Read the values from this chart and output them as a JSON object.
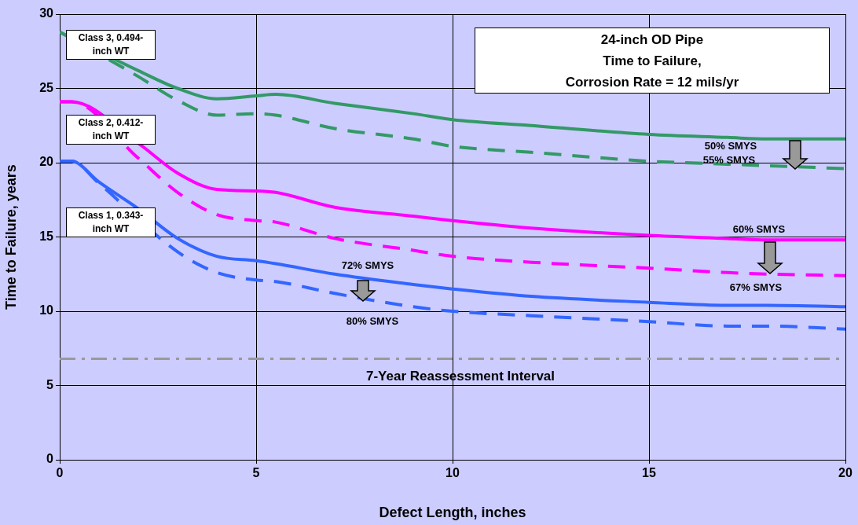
{
  "chart_data": {
    "type": "line",
    "title": "24-inch OD Pipe\nTime to Failure,\nCorrosion Rate = 12 mils/yr",
    "xlabel": "Defect Length, inches",
    "ylabel": "Time to Failure, years",
    "x": [
      0,
      0.3,
      1,
      2,
      3,
      4,
      5,
      5.5,
      7,
      9,
      10,
      12,
      15,
      17,
      18,
      20
    ],
    "series": [
      {
        "name": "50% SMYS",
        "color": "#339966",
        "line_style": "solid",
        "values": [
          28.8,
          null,
          null,
          26.2,
          25.0,
          24.3,
          24.5,
          24.6,
          24.0,
          23.3,
          22.9,
          22.5,
          21.9,
          21.7,
          21.6,
          21.6
        ]
      },
      {
        "name": "55% SMYS",
        "color": "#339966",
        "line_style": "dashed",
        "values": [
          28.8,
          null,
          null,
          25.8,
          24.2,
          23.2,
          23.3,
          23.2,
          22.3,
          21.6,
          21.1,
          20.7,
          20.1,
          19.9,
          19.8,
          19.6
        ]
      },
      {
        "name": "60% SMYS",
        "color": "#ff00ff",
        "line_style": "solid",
        "values": [
          24.1,
          24.1,
          null,
          21.3,
          19.3,
          18.2,
          18.1,
          18.0,
          17.0,
          16.4,
          16.1,
          15.6,
          15.1,
          14.9,
          14.8,
          14.8
        ]
      },
      {
        "name": "67% SMYS",
        "color": "#ff00ff",
        "line_style": "dashed",
        "values": [
          24.1,
          24.1,
          null,
          20.3,
          18.0,
          16.5,
          16.1,
          16.0,
          14.9,
          14.1,
          13.7,
          13.3,
          12.9,
          12.6,
          12.5,
          12.4
        ]
      },
      {
        "name": "72% SMYS",
        "color": "#3366ff",
        "line_style": "solid",
        "values": [
          20.1,
          20.1,
          18.7,
          16.9,
          14.9,
          13.7,
          13.4,
          13.2,
          12.5,
          11.8,
          11.5,
          11.0,
          10.6,
          10.4,
          10.4,
          10.3
        ]
      },
      {
        "name": "80% SMYS",
        "color": "#3366ff",
        "line_style": "dashed",
        "values": [
          20.1,
          20.1,
          18.6,
          null,
          14.0,
          12.6,
          12.1,
          12.0,
          11.2,
          10.3,
          10.0,
          9.7,
          9.3,
          9.0,
          9.0,
          8.8
        ]
      }
    ],
    "annotations": [
      "Class 3, 0.494-inch WT",
      "Class 2, 0.412-inch WT",
      "Class 1, 0.343-inch WT"
    ],
    "ref_lines": [
      {
        "axis": "y",
        "value": 6.8,
        "label": "7-Year Reassessment Interval",
        "color": "#999999",
        "line_style": "dashdot"
      }
    ],
    "xlim": [
      0,
      20
    ],
    "xticks": [
      0,
      5,
      10,
      15,
      20
    ],
    "ylim": [
      0,
      30
    ],
    "yticks": [
      0,
      5,
      10,
      15,
      20,
      25,
      30
    ],
    "grid": true,
    "legend": false,
    "marker": "none"
  }
}
